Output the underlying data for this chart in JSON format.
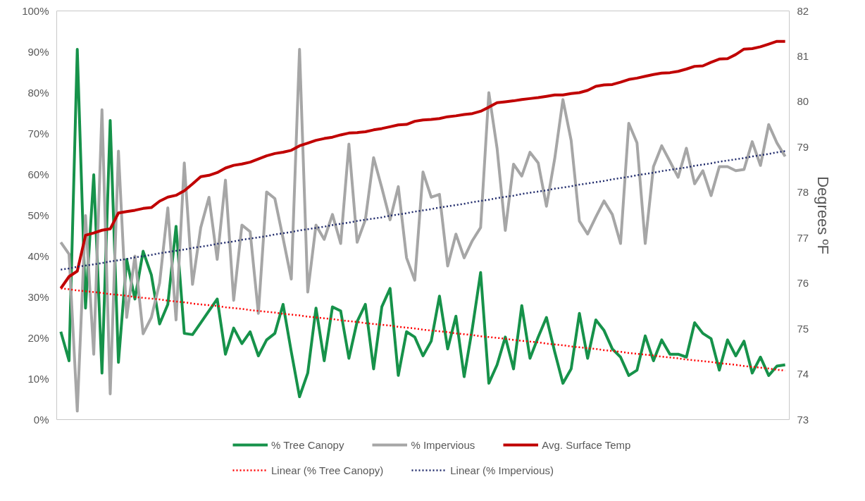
{
  "chart_data": {
    "type": "line",
    "categories": [
      null,
      null,
      null,
      null,
      null,
      null,
      null,
      null,
      null,
      null,
      null,
      null,
      null,
      null,
      null,
      null,
      null,
      null,
      null,
      null,
      null,
      null,
      null,
      null,
      null,
      null,
      null,
      null,
      null,
      null,
      null,
      null,
      null,
      null,
      null,
      null,
      null,
      null,
      null,
      null,
      null,
      null,
      null,
      null,
      null,
      null,
      null,
      null,
      null,
      null,
      null,
      null,
      null,
      null,
      null,
      null,
      null,
      null,
      null,
      null,
      null,
      null,
      null,
      null,
      null,
      null,
      null,
      null,
      null,
      null,
      null,
      null,
      null,
      null,
      null,
      null,
      null,
      null,
      null,
      null,
      null,
      null,
      null,
      null,
      null,
      null,
      null,
      null,
      null
    ],
    "ylabel": null,
    "y2label": "Degrees ºF",
    "ylim": [
      0,
      100
    ],
    "yticks": [
      {
        "value": 0,
        "label": "0%"
      },
      {
        "value": 10,
        "label": "10%"
      },
      {
        "value": 20,
        "label": "20%"
      },
      {
        "value": 30,
        "label": "30%"
      },
      {
        "value": 40,
        "label": "40%"
      },
      {
        "value": 50,
        "label": "50%"
      },
      {
        "value": 60,
        "label": "60%"
      },
      {
        "value": 70,
        "label": "70%"
      },
      {
        "value": 80,
        "label": "80%"
      },
      {
        "value": 90,
        "label": "90%"
      },
      {
        "value": 100,
        "label": "100%"
      }
    ],
    "y2lim": [
      73,
      82
    ],
    "y2ticks": [
      73,
      74,
      75,
      76,
      77,
      78,
      79,
      80,
      81,
      82
    ],
    "tick_labels": "y",
    "grid": false,
    "legend": "bottom",
    "line_style": "solid",
    "series": [
      {
        "name": "% Tree Canopy",
        "color": "#16924a",
        "values": [
          21.5,
          14.4,
          90.6,
          27.3,
          59.9,
          11.4,
          73.2,
          14.0,
          39.2,
          29.5,
          41.2,
          35.4,
          23.4,
          28.2,
          47.3,
          21.1,
          20.8,
          23.7,
          26.6,
          29.5,
          16.0,
          22.4,
          18.6,
          21.5,
          15.6,
          19.5,
          21.1,
          28.2,
          16.6,
          5.6,
          11.4,
          27.3,
          14.4,
          27.6,
          26.6,
          15.0,
          24.0,
          28.2,
          12.4,
          27.6,
          32.1,
          10.8,
          21.5,
          20.2,
          15.6,
          19.2,
          30.2,
          17.3,
          25.3,
          10.5,
          22.4,
          36.0,
          8.9,
          13.4,
          20.2,
          12.4,
          27.9,
          15.0,
          20.2,
          25.0,
          16.6,
          8.9,
          12.4,
          26.0,
          15.0,
          24.4,
          21.8,
          17.3,
          15.3,
          10.8,
          12.1,
          20.5,
          14.4,
          19.5,
          16.0,
          16.0,
          15.3,
          23.7,
          21.1,
          19.8,
          12.1,
          19.5,
          15.6,
          19.2,
          11.4,
          15.3,
          10.8,
          13.1,
          13.4
        ]
      },
      {
        "name": "% Impervious",
        "color": "#a6a6a6",
        "values": [
          43.4,
          40.5,
          2.1,
          49.9,
          16.0,
          75.8,
          6.3,
          65.7,
          25.0,
          40.0,
          21.0,
          25.0,
          33.4,
          51.8,
          24.4,
          62.8,
          33.1,
          47.0,
          54.4,
          39.2,
          58.6,
          29.2,
          47.6,
          46.0,
          26.0,
          55.7,
          54.1,
          44.4,
          34.4,
          90.6,
          31.2,
          47.6,
          44.1,
          50.2,
          43.1,
          67.4,
          43.4,
          48.9,
          64.1,
          56.7,
          48.9,
          57.0,
          39.6,
          34.1,
          60.6,
          54.4,
          55.1,
          37.6,
          45.4,
          39.6,
          43.8,
          47.0,
          80.0,
          66.4,
          46.3,
          62.5,
          59.6,
          65.4,
          62.8,
          52.2,
          63.8,
          78.3,
          68.3,
          48.6,
          45.4,
          49.6,
          53.5,
          50.2,
          43.1,
          72.5,
          67.7,
          43.1,
          61.9,
          67.0,
          63.2,
          59.3,
          66.4,
          57.7,
          60.9,
          54.8,
          61.9,
          61.9,
          60.9,
          61.2,
          68.0,
          62.2,
          72.2,
          67.7,
          64.4
        ]
      },
      {
        "name": "Avg. Surface Temp",
        "color": "#c00000",
        "axis": "y2",
        "values": [
          75.89,
          76.15,
          76.27,
          77.06,
          77.11,
          77.17,
          77.2,
          77.55,
          77.58,
          77.61,
          77.65,
          77.67,
          77.81,
          77.9,
          77.94,
          78.04,
          78.19,
          78.35,
          78.38,
          78.44,
          78.54,
          78.6,
          78.63,
          78.67,
          78.74,
          78.81,
          78.86,
          78.89,
          78.93,
          79.03,
          79.09,
          79.15,
          79.19,
          79.22,
          79.27,
          79.31,
          79.32,
          79.34,
          79.38,
          79.41,
          79.45,
          79.49,
          79.5,
          79.57,
          79.6,
          79.61,
          79.63,
          79.67,
          79.69,
          79.72,
          79.74,
          79.79,
          79.88,
          79.98,
          80.0,
          80.02,
          80.05,
          80.07,
          80.09,
          80.12,
          80.15,
          80.15,
          80.18,
          80.2,
          80.25,
          80.34,
          80.37,
          80.38,
          80.43,
          80.49,
          80.52,
          80.56,
          80.6,
          80.63,
          80.64,
          80.67,
          80.72,
          80.78,
          80.79,
          80.87,
          80.94,
          80.95,
          81.04,
          81.16,
          81.17,
          81.21,
          81.27,
          81.33,
          81.33
        ]
      },
      {
        "name": "Linear (% Tree Canopy)",
        "color": "#ff0000",
        "line_style": "dotted",
        "values": [
          32.1,
          31.9,
          31.6,
          31.4,
          31.2,
          31.0,
          30.7,
          30.5,
          30.3,
          30.0,
          29.8,
          29.6,
          29.4,
          29.1,
          28.9,
          28.7,
          28.4,
          28.2,
          28.0,
          27.8,
          27.5,
          27.3,
          27.1,
          26.8,
          26.6,
          26.4,
          26.2,
          25.9,
          25.7,
          25.5,
          25.2,
          25.0,
          24.8,
          24.6,
          24.3,
          24.1,
          23.9,
          23.6,
          23.4,
          23.2,
          23.0,
          22.7,
          22.5,
          22.3,
          22.0,
          21.8,
          21.6,
          21.4,
          21.1,
          20.9,
          20.7,
          20.4,
          20.2,
          20.0,
          19.8,
          19.5,
          19.3,
          19.1,
          18.9,
          18.6,
          18.4,
          18.2,
          17.9,
          17.7,
          17.5,
          17.3,
          17.0,
          16.8,
          16.6,
          16.3,
          16.1,
          15.9,
          15.7,
          15.4,
          15.2,
          15.0,
          14.7,
          14.5,
          14.3,
          14.1,
          13.8,
          13.6,
          13.4,
          13.1,
          12.9,
          12.7,
          12.5,
          12.2,
          12.0
        ]
      },
      {
        "name": "Linear (% Impervious)",
        "color": "#1f2a6b",
        "line_style": "dotted",
        "values": [
          36.7,
          37.0,
          37.4,
          37.7,
          38.0,
          38.3,
          38.7,
          39.0,
          39.3,
          39.7,
          40.0,
          40.3,
          40.7,
          41.0,
          41.3,
          41.6,
          42.0,
          42.3,
          42.6,
          43.0,
          43.3,
          43.6,
          44.0,
          44.3,
          44.6,
          44.9,
          45.3,
          45.6,
          45.9,
          46.3,
          46.6,
          46.9,
          47.2,
          47.6,
          47.9,
          48.2,
          48.6,
          48.9,
          49.2,
          49.5,
          49.9,
          50.2,
          50.5,
          50.9,
          51.2,
          51.5,
          51.9,
          52.2,
          52.5,
          52.8,
          53.2,
          53.5,
          53.8,
          54.2,
          54.5,
          54.8,
          55.2,
          55.5,
          55.8,
          56.1,
          56.5,
          56.8,
          57.1,
          57.5,
          57.8,
          58.1,
          58.4,
          58.8,
          59.1,
          59.4,
          59.8,
          60.1,
          60.4,
          60.8,
          61.1,
          61.4,
          61.7,
          62.1,
          62.4,
          62.7,
          63.1,
          63.4,
          63.7,
          64.0,
          64.4,
          64.7,
          65.0,
          65.4,
          65.7
        ]
      }
    ]
  }
}
